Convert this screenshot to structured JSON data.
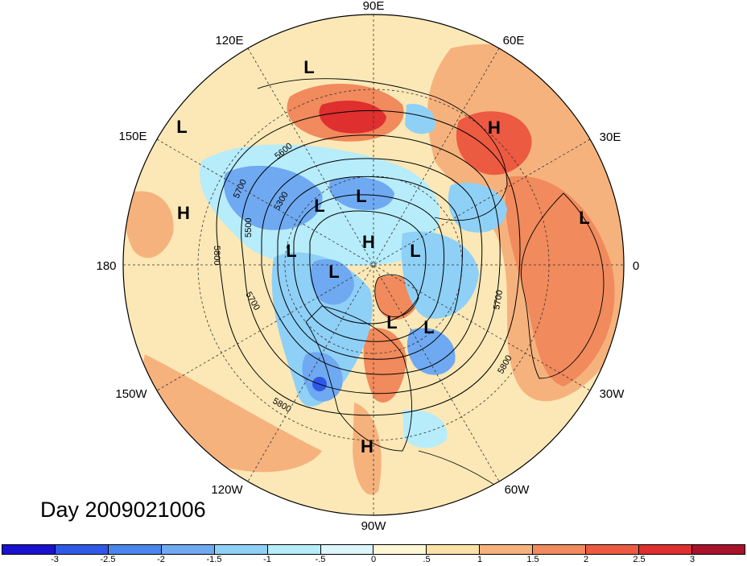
{
  "map": {
    "projection": "north polar stereographic",
    "field_shading": "anomaly",
    "contour_field": "geopotential height",
    "longitude_labels": [
      "90E",
      "60E",
      "30E",
      "0",
      "30W",
      "60W",
      "90W",
      "120W",
      "150W",
      "180",
      "150E",
      "120E"
    ],
    "contour_labels": [
      "5600",
      "5700",
      "5300",
      "5800",
      "5500",
      "5700",
      "5700",
      "5800",
      "5800"
    ],
    "pressure_centers": [
      {
        "type": "L",
        "region": "NE Siberia"
      },
      {
        "type": "L",
        "region": "N Pacific west"
      },
      {
        "type": "H",
        "region": "N Pacific"
      },
      {
        "type": "H",
        "region": "Urals"
      },
      {
        "type": "L",
        "region": "Africa"
      },
      {
        "type": "L",
        "region": "Siberia"
      },
      {
        "type": "L",
        "region": "Siberia east"
      },
      {
        "type": "H",
        "region": "Arctic"
      },
      {
        "type": "L",
        "region": "Europe north"
      },
      {
        "type": "L",
        "region": "Bering"
      },
      {
        "type": "L",
        "region": "Alaska/Canada"
      },
      {
        "type": "L",
        "region": "Greenland"
      },
      {
        "type": "L",
        "region": "Labrador"
      },
      {
        "type": "H",
        "region": "Gulf of Mexico"
      }
    ]
  },
  "title": {
    "day_label": "Day 2009021006"
  },
  "colorbar": {
    "colors": [
      "#1a10d0",
      "#2f58e6",
      "#4a86ee",
      "#6fa9f2",
      "#8fd0f7",
      "#b7ecfa",
      "#dcf6fb",
      "#fdf7d6",
      "#fbe2a6",
      "#f6b27d",
      "#f18a5c",
      "#ec5a42",
      "#df2f2f",
      "#a8122a"
    ],
    "tick_labels": [
      "-3",
      "-2.5",
      "-2",
      "-1.5",
      "-1",
      "-.5",
      "0",
      ".5",
      "1",
      "1.5",
      "2",
      "2.5",
      "3"
    ]
  },
  "colors": {
    "warm": "#f6b27d",
    "warm_strong": "#ec5a42",
    "cold": "#8fd0f7",
    "cold_strong": "#4a86ee",
    "neutral": "#fbe8b6"
  }
}
